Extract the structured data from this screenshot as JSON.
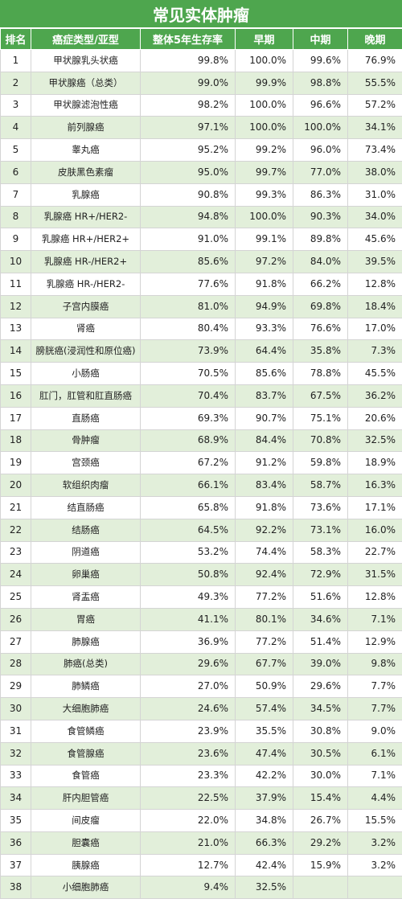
{
  "title": "常见实体肿瘤",
  "headers": [
    "排名",
    "癌症类型/亚型",
    "整体5年生存率",
    "早期",
    "中期",
    "晚期"
  ],
  "rows": [
    [
      "1",
      "甲状腺乳头状癌",
      "99.8%",
      "100.0%",
      "99.6%",
      "76.9%"
    ],
    [
      "2",
      "甲状腺癌（总类）",
      "99.0%",
      "99.9%",
      "98.8%",
      "55.5%"
    ],
    [
      "3",
      "甲状腺滤泡性癌",
      "98.2%",
      "100.0%",
      "96.6%",
      "57.2%"
    ],
    [
      "4",
      "前列腺癌",
      "97.1%",
      "100.0%",
      "100.0%",
      "34.1%"
    ],
    [
      "5",
      "睾丸癌",
      "95.2%",
      "99.2%",
      "96.0%",
      "73.4%"
    ],
    [
      "6",
      "皮肤黑色素瘤",
      "95.0%",
      "99.7%",
      "77.0%",
      "38.0%"
    ],
    [
      "7",
      "乳腺癌",
      "90.8%",
      "99.3%",
      "86.3%",
      "31.0%"
    ],
    [
      "8",
      "乳腺癌 HR+/HER2-",
      "94.8%",
      "100.0%",
      "90.3%",
      "34.0%"
    ],
    [
      "9",
      "乳腺癌 HR+/HER2+",
      "91.0%",
      "99.1%",
      "89.8%",
      "45.6%"
    ],
    [
      "10",
      "乳腺癌 HR-/HER2+",
      "85.6%",
      "97.2%",
      "84.0%",
      "39.5%"
    ],
    [
      "11",
      "乳腺癌 HR-/HER2-",
      "77.6%",
      "91.8%",
      "66.2%",
      "12.8%"
    ],
    [
      "12",
      "子宫内膜癌",
      "81.0%",
      "94.9%",
      "69.8%",
      "18.4%"
    ],
    [
      "13",
      "肾癌",
      "80.4%",
      "93.3%",
      "76.6%",
      "17.0%"
    ],
    [
      "14",
      "膀胱癌(浸润性和原位癌)",
      "73.9%",
      "64.4%",
      "35.8%",
      "7.3%"
    ],
    [
      "15",
      "小肠癌",
      "70.5%",
      "85.6%",
      "78.8%",
      "45.5%"
    ],
    [
      "16",
      "肛门，肛管和肛直肠癌",
      "70.4%",
      "83.7%",
      "67.5%",
      "36.2%"
    ],
    [
      "17",
      "直肠癌",
      "69.3%",
      "90.7%",
      "75.1%",
      "20.6%"
    ],
    [
      "18",
      "骨肿瘤",
      "68.9%",
      "84.4%",
      "70.8%",
      "32.5%"
    ],
    [
      "19",
      "宫颈癌",
      "67.2%",
      "91.2%",
      "59.8%",
      "18.9%"
    ],
    [
      "20",
      "软组织肉瘤",
      "66.1%",
      "83.4%",
      "58.7%",
      "16.3%"
    ],
    [
      "21",
      "结直肠癌",
      "65.8%",
      "91.8%",
      "73.6%",
      "17.1%"
    ],
    [
      "22",
      "结肠癌",
      "64.5%",
      "92.2%",
      "73.1%",
      "16.0%"
    ],
    [
      "23",
      "阴道癌",
      "53.2%",
      "74.4%",
      "58.3%",
      "22.7%"
    ],
    [
      "24",
      "卵巢癌",
      "50.8%",
      "92.4%",
      "72.9%",
      "31.5%"
    ],
    [
      "25",
      "肾盂癌",
      "49.3%",
      "77.2%",
      "51.6%",
      "12.8%"
    ],
    [
      "26",
      "胃癌",
      "41.1%",
      "80.1%",
      "34.6%",
      "7.1%"
    ],
    [
      "27",
      "肺腺癌",
      "36.9%",
      "77.2%",
      "51.4%",
      "12.9%"
    ],
    [
      "28",
      "肺癌(总类)",
      "29.6%",
      "67.7%",
      "39.0%",
      "9.8%"
    ],
    [
      "29",
      "肺鳞癌",
      "27.0%",
      "50.9%",
      "29.6%",
      "7.7%"
    ],
    [
      "30",
      "大细胞肺癌",
      "24.6%",
      "57.4%",
      "34.5%",
      "7.7%"
    ],
    [
      "31",
      "食管鳞癌",
      "23.9%",
      "35.5%",
      "30.8%",
      "9.0%"
    ],
    [
      "32",
      "食管腺癌",
      "23.6%",
      "47.4%",
      "30.5%",
      "6.1%"
    ],
    [
      "33",
      "食管癌",
      "23.3%",
      "42.2%",
      "30.0%",
      "7.1%"
    ],
    [
      "34",
      "肝内胆管癌",
      "22.5%",
      "37.9%",
      "15.4%",
      "4.4%"
    ],
    [
      "35",
      "间皮瘤",
      "22.0%",
      "34.8%",
      "26.7%",
      "15.5%"
    ],
    [
      "36",
      "胆囊癌",
      "21.0%",
      "66.3%",
      "29.2%",
      "3.2%"
    ],
    [
      "37",
      "胰腺癌",
      "12.7%",
      "42.4%",
      "15.9%",
      "3.2%"
    ],
    [
      "38",
      "小细胞肺癌",
      "9.4%",
      "32.5%",
      "",
      ""
    ]
  ],
  "colors": {
    "header_green": "#4ea64e",
    "stripe": "#e2efda"
  }
}
